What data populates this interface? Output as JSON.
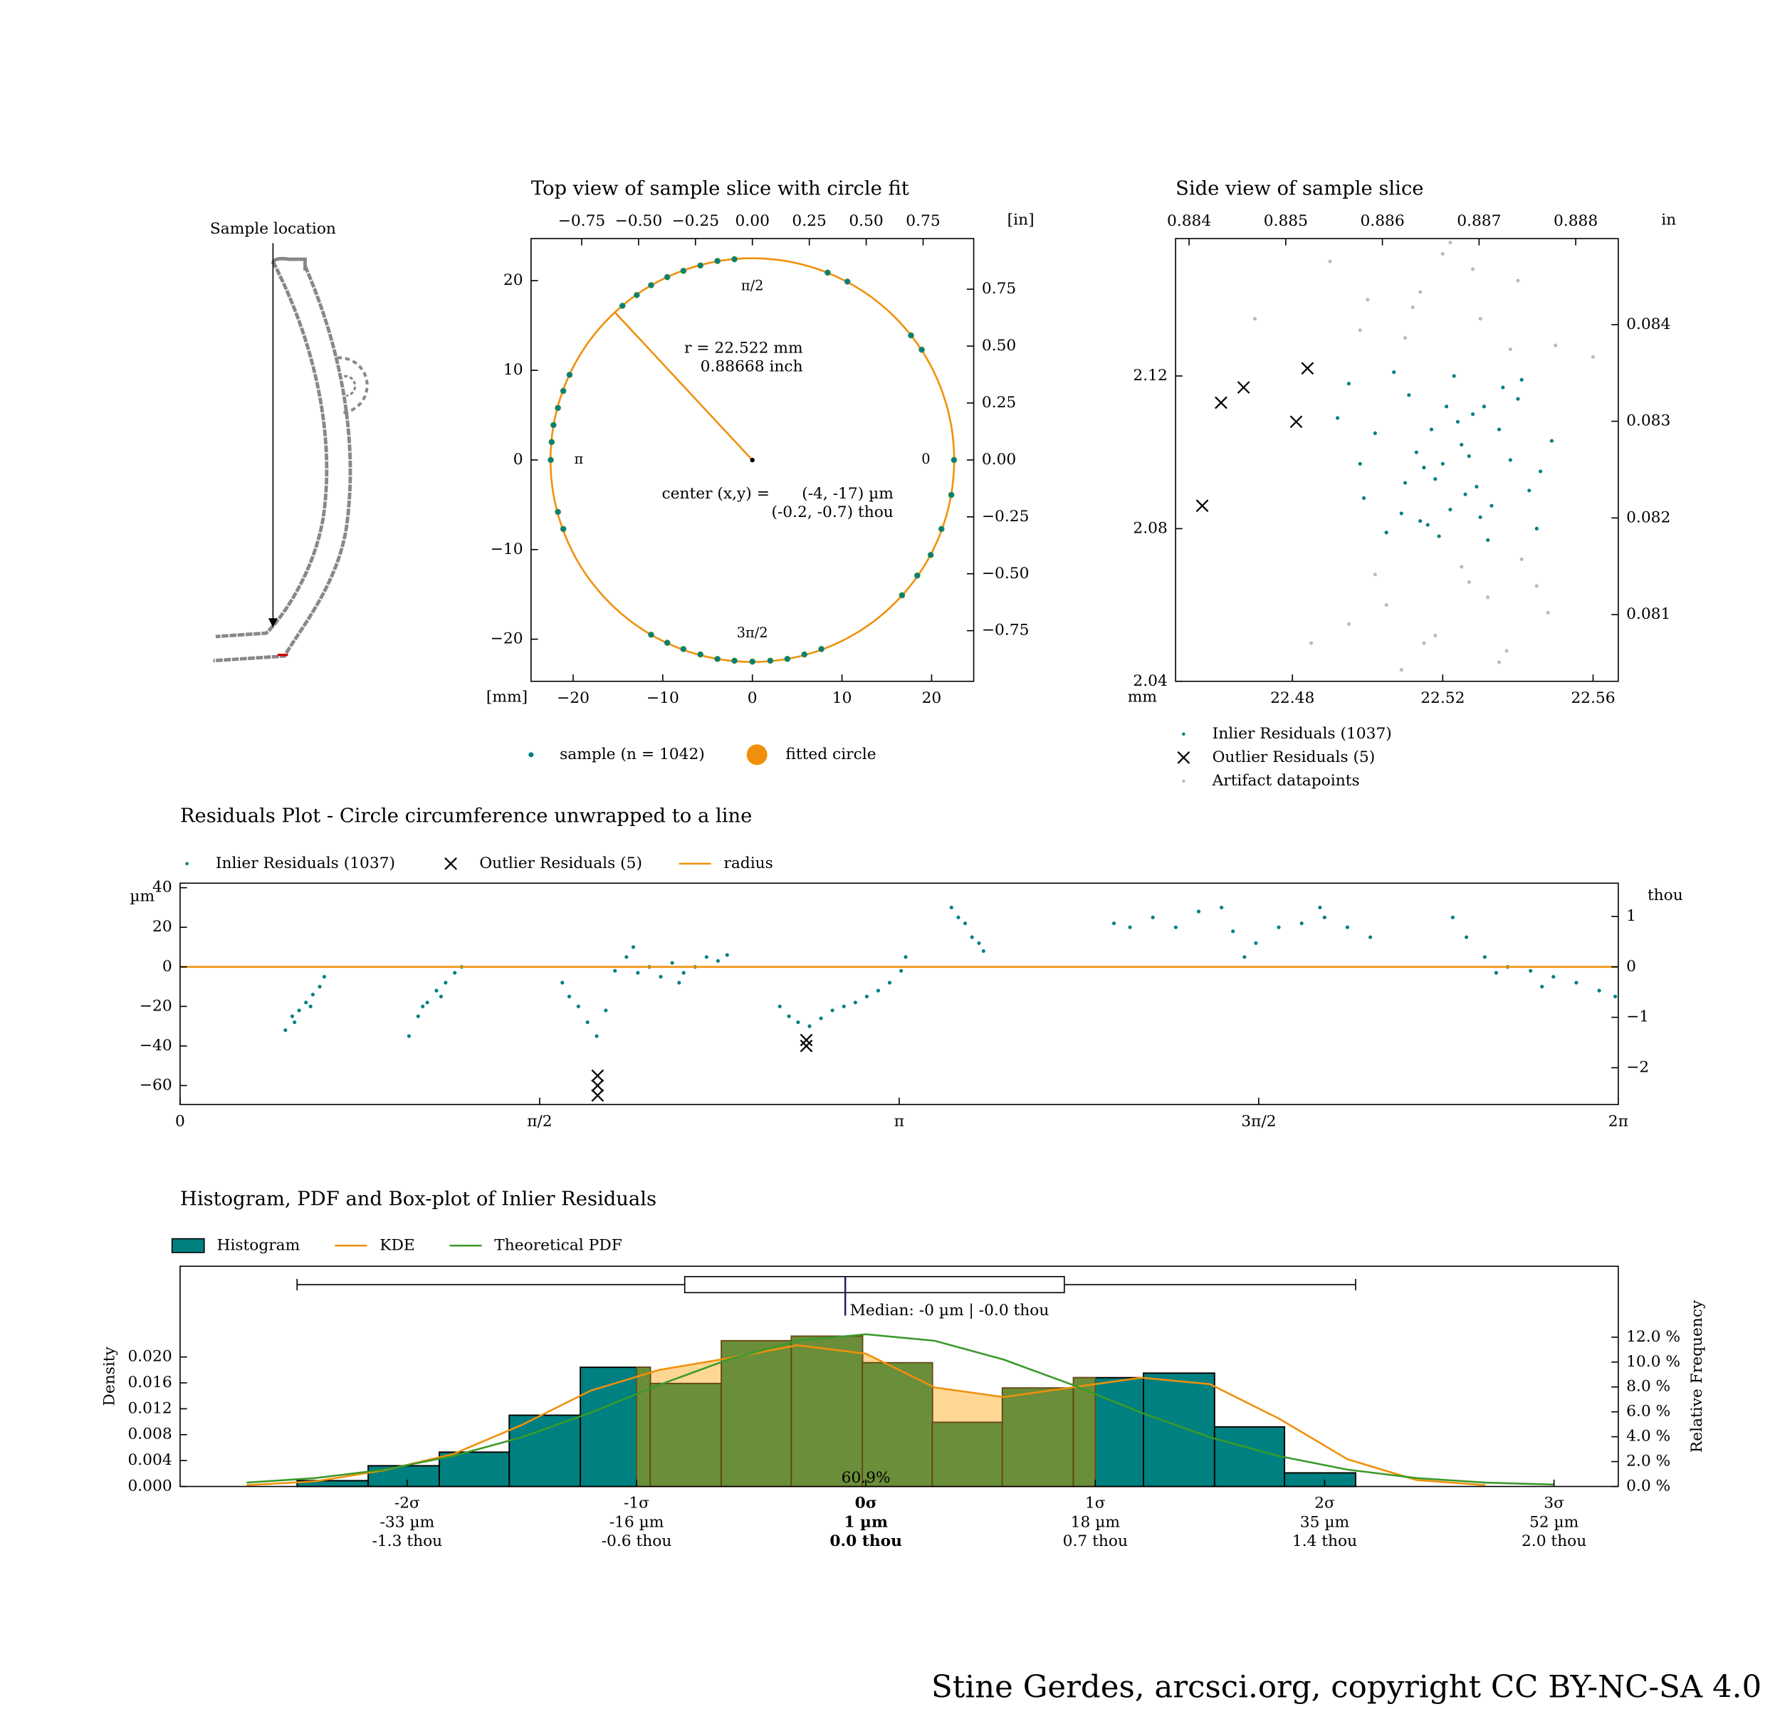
{
  "chart_data": [
    {
      "type": "diagram",
      "title": "Sample location"
    },
    {
      "type": "circle_fit",
      "title": "Top view of sample slice with circle fit",
      "x_label": "[mm]",
      "x2_label": "[in]",
      "xlim": [
        -24.7,
        24.7
      ],
      "ylim": [
        -24.7,
        24.7
      ],
      "xticks": [
        {
          "value": -20,
          "label": "−20"
        },
        {
          "value": -10,
          "label": "−10"
        },
        0,
        10,
        20
      ],
      "yticks": [
        {
          "value": -20,
          "label": "−20"
        },
        {
          "value": -10,
          "label": "−10"
        },
        0,
        10,
        20
      ],
      "x2lim": [
        -0.9724,
        0.9724
      ],
      "y2lim": [
        -0.9724,
        0.9724
      ],
      "x2ticks": [
        {
          "value": -0.75,
          "label": "−0.75"
        },
        {
          "value": -0.5,
          "label": "−0.50"
        },
        {
          "value": -0.25,
          "label": "−0.25"
        },
        {
          "value": 0,
          "label": "0.00"
        },
        0.25,
        {
          "value": 0.5,
          "label": "0.50"
        },
        0.75
      ],
      "y2ticks": [
        {
          "value": -0.75,
          "label": "−0.75"
        },
        {
          "value": -0.5,
          "label": "−0.50"
        },
        {
          "value": -0.25,
          "label": "−0.25"
        },
        {
          "value": 0,
          "label": "0.00"
        },
        0.25,
        {
          "value": 0.5,
          "label": "0.50"
        },
        0.75
      ],
      "angle_labels": [
        {
          "value": 0,
          "label": "0"
        },
        {
          "value": 1.5708,
          "label": "π/2"
        },
        {
          "value": 3.1416,
          "label": "π"
        },
        {
          "value": 4.7124,
          "label": "3π/2"
        }
      ],
      "annotations": [
        "r = 22.522 mm",
        "0.88668 inch",
        "center (x,y) =",
        "(-4, -17) µm",
        "(-0.2, -0.7) thou"
      ],
      "series": [
        {
          "name": "sample (n = 1042)",
          "color": "#008080",
          "x": [
            22.5,
            22.2,
            21.1,
            19.9,
            18.4,
            16.7,
            18.9,
            17.7,
            10.6,
            8.4,
            -2.0,
            -3.9,
            -5.8,
            -7.7,
            -9.5,
            -11.3,
            -12.9,
            -14.5,
            -20.4,
            -21.1,
            -21.7,
            -22.2,
            -22.4,
            -22.5,
            -21.7,
            -21.1,
            -11.3,
            -9.5,
            -7.7,
            -5.8,
            -3.9,
            -2.0,
            0,
            2.0,
            3.9,
            5.8,
            7.7
          ],
          "y": [
            0,
            -3.9,
            -7.7,
            -10.6,
            -12.9,
            -15.1,
            12.3,
            13.9,
            19.9,
            20.9,
            22.4,
            22.2,
            21.7,
            21.1,
            20.4,
            19.5,
            18.4,
            17.2,
            9.5,
            7.7,
            5.8,
            3.9,
            2.0,
            0,
            -5.8,
            -7.7,
            -19.5,
            -20.4,
            -21.1,
            -21.7,
            -22.2,
            -22.4,
            -22.5,
            -22.4,
            -22.2,
            -21.7,
            -21.1
          ]
        },
        {
          "name": "fitted circle",
          "color": "#f0900a",
          "radius": 22.522,
          "center": [
            -0.004,
            -0.017
          ]
        }
      ]
    },
    {
      "type": "scatter",
      "title": "Side view of sample slice",
      "x_label": "mm",
      "y2_label": "in",
      "xlim": [
        22.4489,
        22.5667
      ],
      "ylim": [
        2.04,
        2.156
      ],
      "xticks": [
        22.48,
        22.52,
        22.56
      ],
      "yticks": [
        2.04,
        2.08,
        2.12
      ],
      "x2lim": [
        0.88386,
        0.88844
      ],
      "x2ticks": [
        0.884,
        0.885,
        0.886,
        0.887,
        0.888
      ],
      "y2lim": [
        0.08031,
        0.08489
      ],
      "y2ticks": [
        0.081,
        0.082,
        0.083,
        0.084
      ],
      "series": [
        {
          "name": "Inlier Residuals (1037)",
          "color": "#008080",
          "marker": "dot",
          "x": [
            22.495,
            22.502,
            22.51,
            22.516,
            22.521,
            22.527,
            22.533,
            22.54,
            22.546,
            22.499,
            22.507,
            22.513,
            22.519,
            22.524,
            22.53,
            22.536,
            22.543,
            22.549,
            22.505,
            22.515,
            22.522,
            22.528,
            22.538,
            22.492,
            22.511,
            22.518,
            22.525,
            22.532,
            22.541,
            22.509,
            22.52,
            22.526,
            22.535,
            22.498,
            22.514,
            22.523,
            22.529,
            22.545,
            22.517,
            22.531
          ],
          "y": [
            2.118,
            2.105,
            2.092,
            2.081,
            2.112,
            2.099,
            2.086,
            2.114,
            2.095,
            2.088,
            2.121,
            2.1,
            2.078,
            2.108,
            2.083,
            2.117,
            2.09,
            2.103,
            2.079,
            2.096,
            2.085,
            2.11,
            2.098,
            2.109,
            2.115,
            2.093,
            2.102,
            2.077,
            2.119,
            2.084,
            2.097,
            2.089,
            2.106,
            2.097,
            2.082,
            2.12,
            2.091,
            2.08,
            2.106,
            2.112
          ]
        },
        {
          "name": "Outlier Residuals (5)",
          "color": "#000000",
          "marker": "x",
          "x": [
            22.456,
            22.461,
            22.467,
            22.481,
            22.484
          ],
          "y": [
            2.086,
            2.113,
            2.117,
            2.108,
            2.122
          ]
        },
        {
          "name": "Artifact datapoints",
          "color": "#bbbbbb",
          "marker": "dot",
          "x": [
            22.49,
            22.5,
            22.51,
            22.52,
            22.53,
            22.54,
            22.55,
            22.505,
            22.515,
            22.525,
            22.535,
            22.545,
            22.495,
            22.512,
            22.528,
            22.538,
            22.502,
            22.518,
            22.532,
            22.548,
            22.47,
            22.485,
            22.56,
            22.509,
            22.522,
            22.541,
            22.498,
            22.527,
            22.514,
            22.537
          ],
          "y": [
            2.15,
            2.14,
            2.13,
            2.152,
            2.135,
            2.145,
            2.128,
            2.06,
            2.05,
            2.07,
            2.045,
            2.065,
            2.055,
            2.138,
            2.148,
            2.127,
            2.068,
            2.052,
            2.062,
            2.058,
            2.135,
            2.05,
            2.125,
            2.043,
            2.155,
            2.072,
            2.132,
            2.066,
            2.142,
            2.048
          ]
        }
      ]
    },
    {
      "type": "scatter",
      "title": "Residuals Plot - Circle circumference unwrapped to a line",
      "y_label": "µm",
      "y2_label": "thou",
      "xlim": [
        0,
        6.2832
      ],
      "ylim": [
        -69.6,
        42.3
      ],
      "y2lim": [
        -2.73,
        1.66
      ],
      "xticks": [
        0,
        {
          "value": 1.5708,
          "label": "π/2"
        },
        {
          "value": 3.1416,
          "label": "π"
        },
        {
          "value": 4.7124,
          "label": "3π/2"
        },
        {
          "value": 6.2832,
          "label": "2π"
        }
      ],
      "yticks": [
        {
          "value": -60,
          "label": "−60"
        },
        {
          "value": -40,
          "label": "−40"
        },
        {
          "value": -20,
          "label": "−20"
        },
        0,
        20,
        40
      ],
      "y2ticks": [
        {
          "value": -2,
          "label": "−2"
        },
        {
          "value": -1,
          "label": "−1"
        },
        0,
        1
      ],
      "series": [
        {
          "name": "Inlier Residuals (1037)",
          "color": "#008080",
          "marker": "dot",
          "x": [
            0.46,
            0.49,
            0.52,
            0.55,
            0.58,
            0.61,
            0.63,
            0.5,
            0.57,
            1.0,
            1.04,
            1.08,
            1.12,
            1.16,
            1.2,
            1.23,
            1.06,
            1.14,
            1.67,
            1.7,
            1.74,
            1.78,
            1.82,
            1.86,
            1.9,
            1.95,
            2.0,
            2.05,
            2.1,
            2.15,
            2.2,
            2.25,
            2.3,
            2.35,
            2.39,
            1.98,
            2.18,
            2.62,
            2.66,
            2.7,
            2.75,
            2.8,
            2.85,
            2.9,
            2.95,
            3.0,
            3.05,
            3.1,
            3.15,
            3.17,
            3.37,
            3.4,
            3.43,
            3.46,
            3.49,
            3.51,
            4.08,
            4.15,
            4.25,
            4.35,
            4.45,
            4.55,
            4.6,
            4.7,
            4.8,
            4.9,
            5.0,
            5.1,
            5.2,
            4.65,
            4.98,
            5.56,
            5.62,
            5.7,
            5.8,
            5.9,
            6.0,
            6.1,
            6.2,
            6.27,
            5.75,
            5.95
          ],
          "y": [
            -32,
            -25,
            -22,
            -18,
            -14,
            -10,
            -5,
            -28,
            -20,
            -35,
            -25,
            -18,
            -12,
            -8,
            -3,
            0,
            -20,
            -15,
            -8,
            -15,
            -20,
            -28,
            -35,
            -22,
            -2,
            5,
            -3,
            0,
            -5,
            2,
            -3,
            0,
            5,
            3,
            6,
            10,
            -8,
            -20,
            -25,
            -28,
            -30,
            -26,
            -22,
            -20,
            -18,
            -15,
            -12,
            -8,
            -2,
            5,
            30,
            25,
            22,
            15,
            12,
            8,
            22,
            20,
            25,
            20,
            28,
            30,
            18,
            12,
            20,
            22,
            25,
            20,
            15,
            5,
            30,
            25,
            15,
            5,
            0,
            -2,
            -5,
            -8,
            -12,
            -15,
            -3,
            -10
          ]
        },
        {
          "name": "Outlier Residuals (5)",
          "color": "#000000",
          "marker": "x",
          "x": [
            1.824,
            1.824,
            1.824,
            2.736,
            2.736
          ],
          "y": [
            -55,
            -60,
            -65,
            -37,
            -40
          ]
        },
        {
          "name": "radius",
          "color": "#f0900a",
          "marker": "line",
          "y": 0
        }
      ]
    },
    {
      "type": "histogram",
      "title": "Histogram, PDF and Box-plot of Inlier Residuals",
      "y_label": "Density",
      "y2_label": "Relative Frequency",
      "xlim": [
        -2.99,
        3.28
      ],
      "ylim": [
        0,
        0.034
      ],
      "y2lim": [
        0,
        17.7
      ],
      "xticks": [
        {
          "value": -2,
          "label": [
            "-2σ",
            "-33 µm",
            "-1.3 thou"
          ]
        },
        {
          "value": -1,
          "label": [
            "-1σ",
            "-16 µm",
            "-0.6 thou"
          ]
        },
        {
          "value": 0,
          "label": [
            "0σ",
            "1 µm",
            "0.0 thou"
          ]
        },
        {
          "value": 1,
          "label": [
            "1σ",
            "18 µm",
            "0.7 thou"
          ]
        },
        {
          "value": 2,
          "label": [
            "2σ",
            "35 µm",
            "1.4 thou"
          ]
        },
        {
          "value": 3,
          "label": [
            "3σ",
            "52 µm",
            "2.0 thou"
          ]
        }
      ],
      "yticks": [
        {
          "value": 0,
          "label": "0.000"
        },
        0.004,
        0.008,
        0.012,
        0.016,
        {
          "value": 0.02,
          "label": "0.020"
        }
      ],
      "y2ticks": [
        {
          "value": 0,
          "label": "0.0 %"
        },
        {
          "value": 2,
          "label": "2.0 %"
        },
        {
          "value": 4,
          "label": "4.0 %"
        },
        {
          "value": 6,
          "label": "6.0 %"
        },
        {
          "value": 8,
          "label": "8.0 %"
        },
        {
          "value": 10,
          "label": "10.0 %"
        },
        {
          "value": 12,
          "label": "12.0 %"
        }
      ],
      "name": "Histogram",
      "color": "#008080",
      "bins": [
        -2.48,
        -2.17,
        -1.86,
        -1.555,
        -1.245,
        -0.94,
        -0.63,
        -0.325,
        -0.015,
        0.29,
        0.595,
        0.905,
        1.21,
        1.52,
        1.825,
        2.135
      ],
      "values": [
        0.0009,
        0.0032,
        0.0053,
        0.011,
        0.0184,
        0.0159,
        0.0225,
        0.0232,
        0.0191,
        0.0099,
        0.0152,
        0.0168,
        0.0175,
        0.0092,
        0.0021
      ],
      "kde": {
        "name": "KDE",
        "color": "#f0900a",
        "x": [
          -2.7,
          -2.4,
          -2.1,
          -1.8,
          -1.5,
          -1.2,
          -0.9,
          -0.6,
          -0.3,
          0,
          0.3,
          0.6,
          0.9,
          1.2,
          1.5,
          1.8,
          2.1,
          2.4,
          2.7
        ],
        "values": [
          0.0002,
          0.0008,
          0.0025,
          0.005,
          0.0095,
          0.0148,
          0.018,
          0.0198,
          0.0218,
          0.0205,
          0.0153,
          0.0138,
          0.0153,
          0.0168,
          0.0158,
          0.0105,
          0.0042,
          0.001,
          0.0002
        ]
      },
      "pdf": {
        "name": "Theoretical PDF",
        "color": "#3a9a2a",
        "x": [
          -2.7,
          -2.4,
          -2.1,
          -1.8,
          -1.5,
          -1.2,
          -0.9,
          -0.6,
          -0.3,
          0,
          0.3,
          0.6,
          0.9,
          1.2,
          1.5,
          1.8,
          2.1,
          2.4,
          2.7,
          3.0
        ],
        "values": [
          0.0006,
          0.0013,
          0.0026,
          0.0047,
          0.0076,
          0.0114,
          0.0157,
          0.0196,
          0.0225,
          0.0235,
          0.0225,
          0.0196,
          0.0157,
          0.0114,
          0.0076,
          0.0047,
          0.0026,
          0.0013,
          0.0006,
          0.0003
        ]
      },
      "sigma_band": {
        "range": [
          -1,
          1
        ],
        "value": 60.9,
        "value_label": "60.9%"
      },
      "boxplot": {
        "whisker_low": -2.48,
        "q1": -0.79,
        "median": -0.09,
        "q3": 0.865,
        "whisker_high": 2.135,
        "median_label": "Median: -0 µm | -0.0 thou"
      }
    }
  ],
  "footer": "Stine Gerdes, arcsci.org, copyright CC BY-NC-SA 4.0"
}
